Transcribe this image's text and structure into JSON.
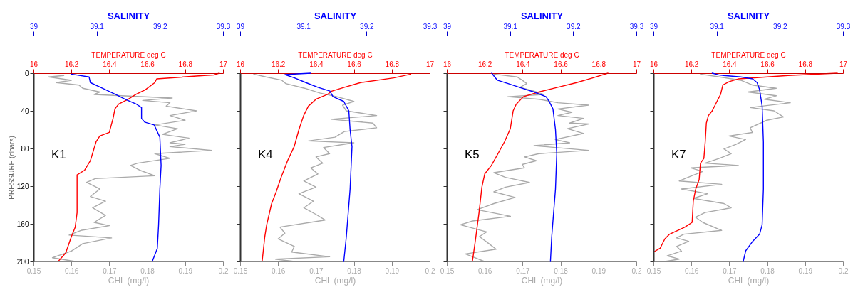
{
  "chart_data": [
    {
      "type": "line",
      "annotations": [
        "K1"
      ],
      "xlabel": "CHL (mg/l)",
      "x2label": "TEMPERATURE deg C",
      "ylabel": "PRESSURE (dbars)",
      "xlim": [
        0.15,
        0.2
      ],
      "xticks": [
        0.15,
        0.16,
        0.17,
        0.18,
        0.19,
        0.2
      ],
      "x2lim": [
        16,
        17
      ],
      "x2ticks": [
        16,
        16.2,
        16.4,
        16.6,
        16.8,
        17
      ],
      "ylim": [
        200,
        0
      ],
      "yticks": [
        0,
        40,
        80,
        120,
        160,
        200
      ],
      "series": [
        {
          "color": "#aaaaaa",
          "x": [
            0.158,
            0.154,
            0.16,
            0.156,
            0.162,
            0.163,
            0.1675,
            0.166,
            0.1866,
            0.1788,
            0.186,
            0.185,
            0.193,
            0.186,
            0.19,
            0.182,
            0.188,
            0.184,
            0.191,
            0.186,
            0.19,
            0.186,
            0.197,
            0.182,
            0.186,
            0.1775,
            0.1756,
            0.178,
            0.182,
            0.1663,
            0.164,
            0.1675,
            0.165,
            0.169,
            0.1656,
            0.169,
            0.166,
            0.17,
            0.1625,
            0.1594,
            0.1706,
            0.163,
            0.16,
            0.155,
            0.161
          ],
          "values": [
            2.5,
            4,
            7.5,
            10,
            12.6,
            16,
            20,
            22.6,
            26.4,
            29,
            31.4,
            35,
            40,
            45,
            50,
            55,
            59,
            65,
            69,
            74,
            75.5,
            78,
            82,
            85.5,
            90.5,
            95.6,
            98,
            103,
            109,
            112,
            116,
            123,
            131,
            136,
            143,
            151,
            158.5,
            162,
            167,
            172,
            175,
            181,
            189,
            196,
            200
          ]
        },
        {
          "color": "#ff0000",
          "axis": "x2",
          "x": [
            16.98,
            16.95,
            16.9,
            16.65,
            16.64,
            16.59,
            16.54,
            16.5,
            16.45,
            16.43,
            16.42,
            16.4,
            16.35,
            16.33,
            16.3,
            16.27,
            16.23,
            16.23,
            16.23,
            16.22,
            16.2,
            16.17,
            16.13
          ],
          "values": [
            0,
            2,
            2.5,
            6,
            10,
            17.6,
            22.6,
            27.7,
            32.7,
            37.7,
            47.8,
            62.9,
            66.7,
            73,
            93,
            103,
            108,
            123,
            148,
            163.5,
            173.6,
            191,
            200
          ]
        }
      ]
    },
    {
      "type": "line",
      "xlabel": "SALINITY",
      "xlim": [
        39,
        39.3
      ],
      "xticks": [
        39,
        39.1,
        39.2,
        39.3
      ],
      "ylim": [
        200,
        0
      ],
      "tick_labels": "x",
      "series": [
        {
          "color": "#0000ff",
          "x": [
            39.06,
            39.088,
            39.09,
            39.109,
            39.131,
            39.146,
            39.163,
            39.171,
            39.171,
            39.176,
            39.191,
            39.2,
            39.202,
            39.2,
            39.198,
            39.196,
            39.188
          ],
          "values": [
            1,
            4,
            10,
            16,
            23,
            28,
            33,
            36.5,
            48,
            52,
            55,
            68,
            98,
            123,
            161,
            186,
            200
          ]
        }
      ]
    },
    {
      "type": "line",
      "annotations": [
        "K4"
      ],
      "xlabel": "CHL (mg/l)",
      "x2label": "TEMPERATURE deg C",
      "tick_labels": "x",
      "xlim": [
        0.15,
        0.2
      ],
      "xticks": [
        0.15,
        0.16,
        0.17,
        0.18,
        0.19,
        0.2
      ],
      "x2lim": [
        16,
        17
      ],
      "x2ticks": [
        16,
        16.2,
        16.4,
        16.6,
        16.8,
        17
      ],
      "ylim": [
        200,
        0
      ],
      "yticks": [
        0,
        40,
        80,
        120,
        160,
        200
      ],
      "series": [
        {
          "color": "#aaaaaa",
          "x": [
            0.1536,
            0.1568,
            0.161,
            0.162,
            0.167,
            0.171,
            0.1755,
            0.18,
            0.177,
            0.178,
            0.186,
            0.174,
            0.185,
            0.186,
            0.1775,
            0.175,
            0.168,
            0.18,
            0.172,
            0.1736,
            0.17,
            0.1718,
            0.1686,
            0.1705,
            0.1668,
            0.17,
            0.1655,
            0.1693,
            0.1668,
            0.17,
            0.1724,
            0.1605,
            0.1618,
            0.16,
            0.1643,
            0.1636,
            0.1736,
            0.1593,
            0.1643
          ],
          "values": [
            1,
            4,
            7.5,
            11,
            16,
            21,
            25,
            30,
            34,
            40,
            45,
            49,
            53,
            58,
            62,
            68,
            72,
            74,
            79,
            85.5,
            89,
            95.6,
            100.6,
            107,
            114.5,
            121,
            128,
            136,
            143,
            150,
            156,
            163.5,
            170,
            176,
            184,
            190,
            195,
            197.5,
            200
          ]
        },
        {
          "color": "#ff0000",
          "axis": "x2",
          "x": [
            16.9,
            16.81,
            16.635,
            16.55,
            16.485,
            16.46,
            16.4,
            16.36,
            16.335,
            16.31,
            16.285,
            16.25,
            16.216,
            16.19,
            16.166,
            16.14,
            16.13,
            16.116
          ],
          "values": [
            1,
            5,
            10,
            15,
            19,
            22.6,
            27.7,
            35,
            45,
            60,
            78,
            93,
            110.7,
            126,
            138.5,
            161,
            173.6,
            200
          ]
        }
      ]
    },
    {
      "type": "line",
      "xlabel": "SALINITY",
      "xlim": [
        39,
        39.3
      ],
      "xticks": [
        39,
        39.1,
        39.2,
        39.3
      ],
      "ylim": [
        200,
        0
      ],
      "tick_labels": "x",
      "series": [
        {
          "color": "#0000ff",
          "x": [
            39.112,
            39.071,
            39.086,
            39.104,
            39.123,
            39.142,
            39.147,
            39.164,
            39.172,
            39.174,
            39.177,
            39.174,
            39.168,
            39.164
          ],
          "values": [
            0,
            1.5,
            5,
            10,
            15,
            19,
            25,
            30,
            40,
            60,
            78,
            123,
            174,
            200
          ]
        }
      ]
    },
    {
      "type": "line",
      "annotations": [
        "K5"
      ],
      "xlabel": "CHL (mg/l)",
      "x2label": "TEMPERATURE deg C",
      "tick_labels": "x",
      "xlim": [
        0.15,
        0.2
      ],
      "xticks": [
        0.15,
        0.16,
        0.17,
        0.18,
        0.19,
        0.2
      ],
      "x2lim": [
        16,
        17
      ],
      "x2ticks": [
        16,
        16.2,
        16.4,
        16.6,
        16.8,
        17
      ],
      "ylim": [
        200,
        0
      ],
      "yticks": [
        0,
        40,
        80,
        120,
        160,
        200
      ],
      "series": [
        {
          "color": "#aaaaaa",
          "x": [
            0.1624,
            0.1686,
            0.1699,
            0.1711,
            0.1693,
            0.173,
            0.1755,
            0.1661,
            0.1743,
            0.1793,
            0.1874,
            0.1793,
            0.183,
            0.1793,
            0.1861,
            0.1824,
            0.1874,
            0.1818,
            0.1861,
            0.1786,
            0.1824,
            0.173,
            0.1786,
            0.1874,
            0.1743,
            0.1705,
            0.1736,
            0.1699,
            0.1705,
            0.1624,
            0.1655,
            0.1718,
            0.1655,
            0.1624,
            0.168,
            0.1624,
            0.158,
            0.1668,
            0.1568,
            0.1536,
            0.1605,
            0.1586,
            0.1611,
            0.163,
            0.1549,
            0.1574,
            0.1599
          ],
          "values": [
            1,
            4,
            7.5,
            11,
            15,
            19,
            22.6,
            25,
            27.7,
            31.4,
            34,
            38,
            41.5,
            45,
            48,
            53,
            54,
            59,
            64,
            70.5,
            74,
            77,
            79,
            82,
            85.5,
            89,
            93,
            97,
            100.6,
            105.7,
            110.7,
            116,
            121,
            126,
            132,
            138.5,
            145,
            152,
            157,
            161,
            168.6,
            173.6,
            181,
            187,
            192,
            196,
            200
          ]
        },
        {
          "color": "#ff0000",
          "axis": "x2",
          "x": [
            16.85,
            16.77,
            16.685,
            16.585,
            16.485,
            16.404,
            16.366,
            16.35,
            16.335,
            16.304,
            16.27,
            16.235,
            16.2,
            16.185,
            16.17,
            16.155,
            16.15,
            16.135
          ],
          "values": [
            0,
            5,
            10,
            15,
            20,
            25,
            33,
            40,
            59,
            73,
            85.5,
            98,
            107,
            121,
            148,
            171,
            178.6,
            200
          ]
        }
      ]
    },
    {
      "type": "line",
      "xlabel": "SALINITY",
      "xlim": [
        39,
        39.3
      ],
      "xticks": [
        39,
        39.1,
        39.2,
        39.3
      ],
      "ylim": [
        200,
        0
      ],
      "tick_labels": "x",
      "series": [
        {
          "color": "#0000ff",
          "x": [
            39.071,
            39.08,
            39.097,
            39.119,
            39.138,
            39.157,
            39.162,
            39.168,
            39.172,
            39.174,
            39.172,
            39.166,
            39.164
          ],
          "values": [
            0,
            7.5,
            11,
            16,
            20,
            25,
            30,
            38,
            60,
            85.5,
            123,
            174,
            200
          ]
        }
      ]
    },
    {
      "type": "line",
      "annotations": [
        "K7"
      ],
      "xlabel": "CHL (mg/l)",
      "x2label": "TEMPERATURE deg C",
      "tick_labels": "x",
      "xlim": [
        0.15,
        0.2
      ],
      "xticks": [
        0.15,
        0.16,
        0.17,
        0.18,
        0.19,
        0.2
      ],
      "x2lim": [
        16,
        17
      ],
      "x2ticks": [
        16,
        16.2,
        16.4,
        16.6,
        16.8,
        17
      ],
      "ylim": [
        200,
        0
      ],
      "yticks": [
        0,
        40,
        80,
        120,
        160,
        200
      ],
      "series": [
        {
          "color": "#aaaaaa",
          "x": [
            0.1624,
            0.1674,
            0.173,
            0.1761,
            0.1824,
            0.1749,
            0.1824,
            0.1793,
            0.1861,
            0.1755,
            0.1818,
            0.1843,
            0.1799,
            0.1755,
            0.1761,
            0.1699,
            0.1743,
            0.1718,
            0.1686,
            0.1705,
            0.1674,
            0.1636,
            0.1724,
            0.1599,
            0.163,
            0.1599,
            0.1568,
            0.168,
            0.1574,
            0.1643,
            0.1605,
            0.1686,
            0.1705,
            0.1636,
            0.1611,
            0.163,
            0.168,
            0.158,
            0.1561,
            0.1593,
            0.1561,
            0.1574,
            0.1536,
            0.1568,
            0.153
          ],
          "values": [
            1,
            4,
            7.5,
            12.6,
            16,
            20,
            24,
            27.7,
            31.4,
            36.5,
            40,
            46.5,
            50,
            58,
            63,
            66.7,
            70.5,
            75.5,
            80.5,
            85.5,
            90.5,
            95.6,
            98,
            100.6,
            104.4,
            109.4,
            114.5,
            118,
            123,
            128,
            133,
            138.5,
            143,
            148,
            153,
            158.5,
            167,
            171,
            175,
            178.6,
            184,
            189,
            194,
            197.5,
            200
          ]
        },
        {
          "color": "#ff0000",
          "axis": "x2",
          "x": [
            16.97,
            16.71,
            16.45,
            16.4,
            16.366,
            16.354,
            16.335,
            16.31,
            16.29,
            16.279,
            16.273,
            16.266,
            16.248,
            16.241,
            16.223,
            16.21,
            16.204,
            16.166,
            16.085,
            16.06,
            16.035,
            16,
            16,
            16
          ],
          "values": [
            0,
            2.5,
            6,
            9,
            12.6,
            22.6,
            30,
            40,
            45,
            53,
            73,
            90.5,
            95.6,
            113,
            123,
            136,
            158.5,
            163.5,
            171,
            176,
            186,
            190,
            195,
            200
          ]
        }
      ]
    },
    {
      "type": "line",
      "xlabel": "SALINITY",
      "xlim": [
        39,
        39.3
      ],
      "xticks": [
        39,
        39.1,
        39.2,
        39.3
      ],
      "ylim": [
        200,
        0
      ],
      "tick_labels": "x",
      "series": [
        {
          "color": "#0000ff",
          "x": [
            39.093,
            39.104,
            39.138,
            39.157,
            39.164,
            39.168,
            39.172,
            39.174,
            39.174,
            39.172,
            39.168,
            39.157,
            39.146,
            39.142
          ],
          "values": [
            0,
            2,
            4,
            6,
            10,
            17.6,
            35,
            73,
            123,
            161,
            171,
            178.6,
            188.7,
            200
          ]
        }
      ]
    }
  ]
}
